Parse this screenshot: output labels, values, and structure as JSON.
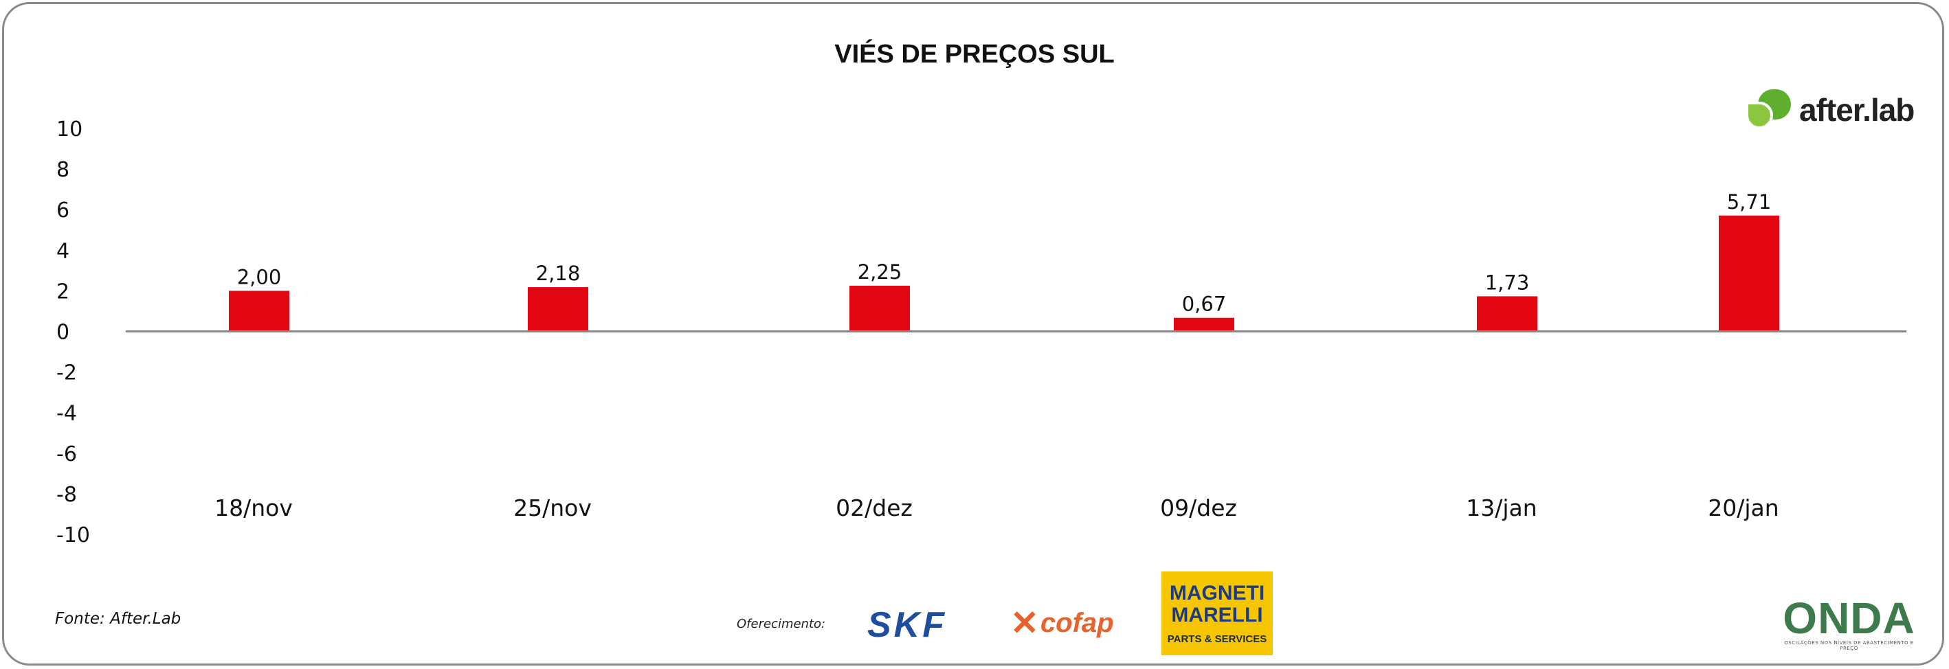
{
  "chart_data": {
    "type": "bar",
    "title": "VIÉS DE PREÇOS SUL",
    "xlabel": "",
    "ylabel": "",
    "categories": [
      "18/nov",
      "25/nov",
      "02/dez",
      "09/dez",
      "13/jan",
      "20/jan"
    ],
    "values": [
      2.0,
      2.18,
      2.25,
      0.67,
      1.73,
      5.71
    ],
    "value_labels": [
      "2,00",
      "2,18",
      "2,25",
      "0,67",
      "1,73",
      "5,71"
    ],
    "ylim": [
      -10,
      10
    ],
    "yticks": [
      10,
      8,
      6,
      4,
      2,
      0,
      -2,
      -4,
      -6,
      -8,
      -10
    ],
    "bar_color": "#e30613",
    "grid": false,
    "legend": "none"
  },
  "footer": {
    "source": "Fonte: After.Lab",
    "sponsor_label": "Oferecimento:"
  },
  "logos": {
    "afterlab": "after.lab",
    "skf": "SKF",
    "cofap": "cofap",
    "magneti_line1": "MAGNETI",
    "magneti_line2": "MARELLI",
    "magneti_line3": "PARTS & SERVICES",
    "onda": "ONDA",
    "onda_tagline": "OSCILAÇÕES NOS NÍVEIS DE ABASTECIMENTO E PREÇO"
  }
}
